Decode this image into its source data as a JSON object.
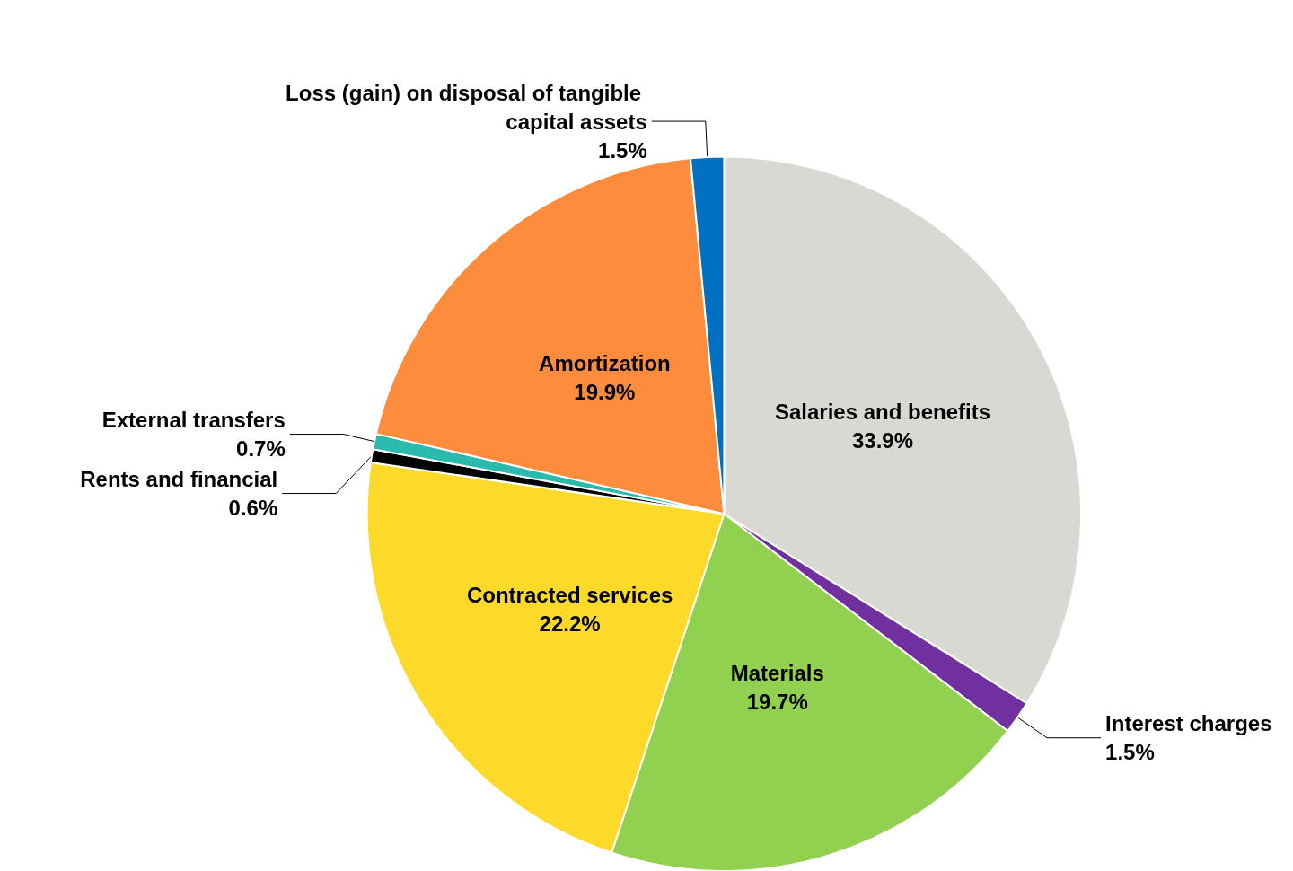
{
  "chart_data": {
    "type": "pie",
    "categories": [
      "Salaries and benefits",
      "Interest charges",
      "Materials",
      "Contracted services",
      "Rents and financial",
      "External transfers",
      "Amortization",
      "Loss (gain) on disposal of tangible capital assets"
    ],
    "values": [
      33.9,
      1.5,
      19.7,
      22.2,
      0.6,
      0.7,
      19.9,
      1.5
    ],
    "value_labels": [
      "33.9%",
      "1.5%",
      "19.7%",
      "22.2%",
      "0.6%",
      "0.7%",
      "19.9%",
      "1.5%"
    ],
    "colors": [
      "#d9d9d4",
      "#7030a0",
      "#92d050",
      "#fdd92a",
      "#000000",
      "#2bbbad",
      "#fd8c3c",
      "#0070c0"
    ],
    "legend": false
  }
}
